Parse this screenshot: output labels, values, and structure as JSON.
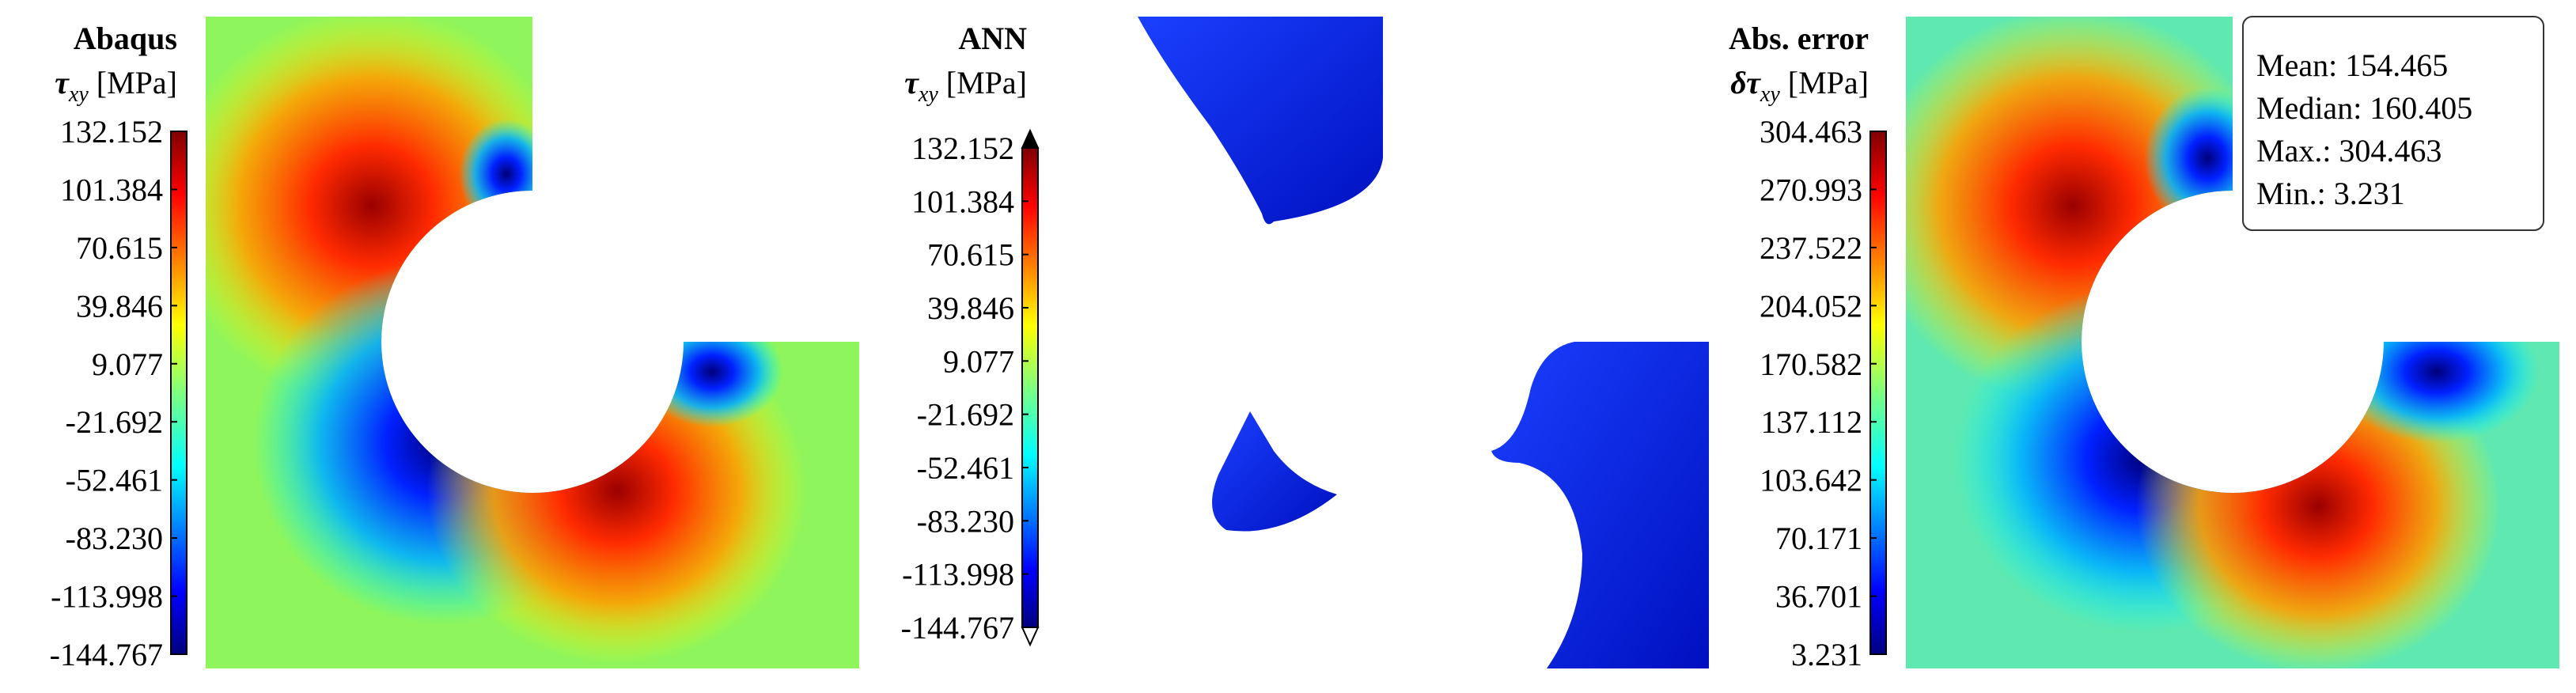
{
  "panels": [
    {
      "title": "Abaqus",
      "symbol": "τ",
      "subscript": "xy",
      "unit": "[MPa]",
      "colorbar_ticks": [
        "132.152",
        "101.384",
        "70.615",
        "39.846",
        "9.077",
        "-21.692",
        "-52.461",
        "-83.230",
        "-113.998",
        "-144.767"
      ]
    },
    {
      "title": "ANN",
      "symbol": "τ",
      "subscript": "xy",
      "unit": "[MPa]",
      "colorbar_ticks": [
        "132.152",
        "101.384",
        "70.615",
        "39.846",
        "9.077",
        "-21.692",
        "-52.461",
        "-83.230",
        "-113.998",
        "-144.767"
      ]
    },
    {
      "title": "Abs. error",
      "symbol": "δτ",
      "subscript": "xy",
      "unit": "[MPa]",
      "colorbar_ticks": [
        "304.463",
        "270.993",
        "237.522",
        "204.052",
        "170.582",
        "137.112",
        "103.642",
        "70.171",
        "36.701",
        "3.231"
      ]
    }
  ],
  "stats": [
    "Mean: 154.465",
    "Median: 160.405",
    "Max.: 304.463",
    "Min.: 3.231"
  ]
}
